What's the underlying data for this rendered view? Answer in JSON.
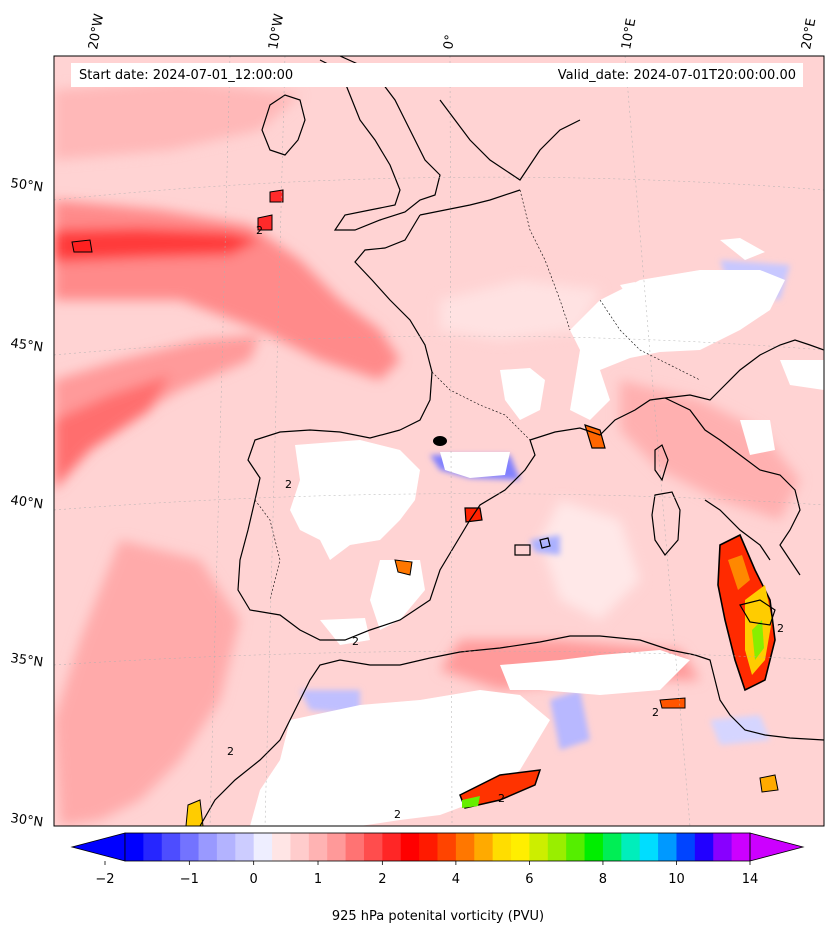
{
  "header": {
    "start_date": "Start date: 2024-07-01_12:00:00",
    "valid_date": "Valid_date: 2024-07-01T20:00:00.00"
  },
  "map": {
    "projection": "conic",
    "lon_labels": [
      "20°W",
      "10°W",
      "0°",
      "10°E",
      "20°E"
    ],
    "lat_labels": [
      "50°N",
      "45°N",
      "40°N",
      "35°N",
      "30°N"
    ],
    "contour_level_label": "2"
  },
  "colorbar": {
    "label": "925 hPa potenital vorticity (PVU)",
    "tick_labels": [
      "−2",
      "−1",
      "0",
      "1",
      "2",
      "4",
      "6",
      "8",
      "10",
      "14"
    ],
    "extend": "both",
    "colors": [
      "#0000ff",
      "#2626ff",
      "#4d4dff",
      "#7373ff",
      "#9999ff",
      "#b3b3ff",
      "#ccccff",
      "#eeeeff",
      "#ffe5e5",
      "#ffcccc",
      "#ffb3b3",
      "#ff9999",
      "#ff7373",
      "#ff4d4d",
      "#ff2626",
      "#ff0000",
      "#ff1a00",
      "#ff4400",
      "#ff7700",
      "#ffaa00",
      "#ffdd00",
      "#ffee00",
      "#ccee00",
      "#99ee00",
      "#55ee00",
      "#00ee00",
      "#00ee55",
      "#00eebb",
      "#00ddff",
      "#0099ff",
      "#0044ff",
      "#2200ff",
      "#8800ff",
      "#cc00ff"
    ]
  }
}
